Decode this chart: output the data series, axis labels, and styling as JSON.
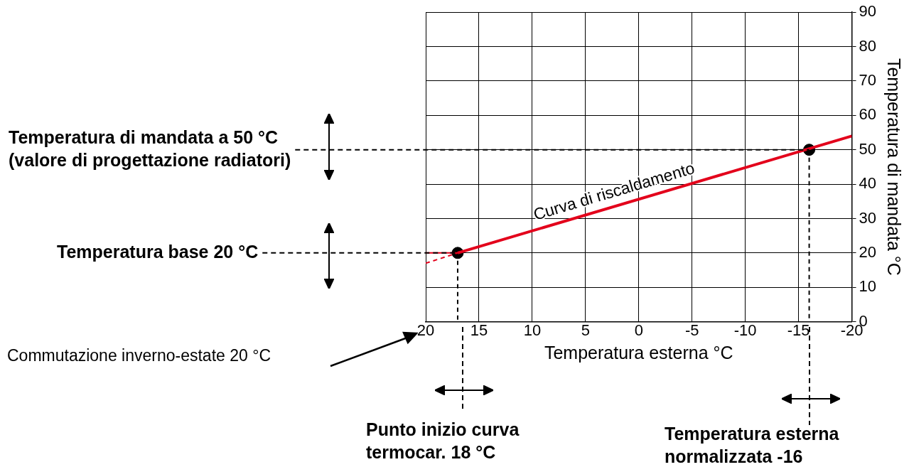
{
  "chart_data": {
    "type": "line",
    "xlabel": "Temperatura esterna °C",
    "ylabel": "Temperatura di mandata °C",
    "xlim": [
      20,
      -20
    ],
    "xticks": [
      20,
      15,
      10,
      5,
      0,
      -5,
      -10,
      -15,
      -20
    ],
    "ylim": [
      0,
      90
    ],
    "yticks": [
      0,
      10,
      20,
      30,
      40,
      50,
      60,
      70,
      80,
      90
    ],
    "grid": true,
    "legend": false,
    "series": [
      {
        "name": "Curva di riscaldamento",
        "type": "line",
        "color": "#e3001b",
        "x": [
          17,
          -20
        ],
        "values": [
          20,
          54
        ],
        "line_style": "solid",
        "marker": "none"
      },
      {
        "type": "line",
        "color": "#e3001b",
        "x": [
          20,
          17
        ],
        "values": [
          17,
          20
        ],
        "line_style": "dashed",
        "marker": "none"
      },
      {
        "type": "line",
        "color": "#e3001b",
        "x": [
          20,
          17
        ],
        "values": [
          20,
          20
        ],
        "line_style": "solid",
        "marker": "none"
      },
      {
        "type": "line",
        "color": "#000000",
        "x": [
          17,
          17
        ],
        "values": [
          20,
          0
        ],
        "line_style": "dashed",
        "marker": "none"
      },
      {
        "type": "line",
        "color": "#000000",
        "x": [
          -16,
          -16
        ],
        "values": [
          50,
          0
        ],
        "line_style": "dashed",
        "marker": "none"
      },
      {
        "type": "scatter",
        "color": "#000000",
        "x": [
          17,
          -16
        ],
        "values": [
          20,
          50
        ],
        "marker": "circle"
      }
    ],
    "annotations": [
      {
        "text": "Temperatura di mandata a 50 °C (valore di progettazione radiatori)",
        "x": -16,
        "y": 50
      },
      {
        "text": "Temperatura base 20 °C",
        "x": 17,
        "y": 20
      },
      "Punto inizio curva termocar. 18 °C",
      "Temperatura esterna normalizzata -16",
      "Commutazione inverno-estate 20 °C"
    ]
  }
}
